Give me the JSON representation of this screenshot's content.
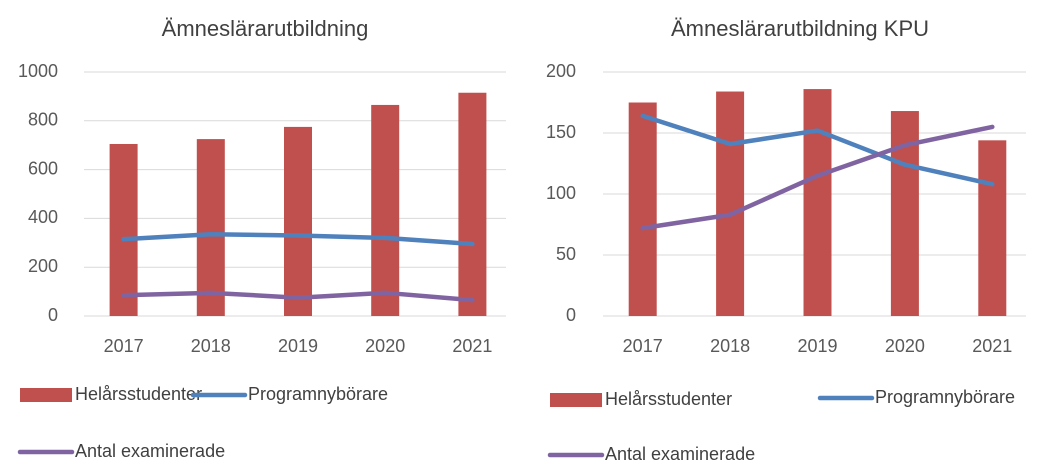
{
  "chart_data": [
    {
      "type": "combo",
      "title": "Ämneslärarutbildning",
      "categories": [
        "2017",
        "2018",
        "2019",
        "2020",
        "2021"
      ],
      "ylim": [
        0,
        1000
      ],
      "yticks": [
        0,
        200,
        400,
        600,
        800,
        1000
      ],
      "grid": true,
      "series": [
        {
          "name": "Helårsstudenter",
          "type": "bar",
          "color": "#c0504d",
          "values": [
            705,
            725,
            775,
            865,
            915
          ]
        },
        {
          "name": "Programnybörare",
          "type": "line",
          "color": "#4f81bd",
          "values": [
            315,
            335,
            330,
            320,
            295
          ]
        },
        {
          "name": "Antal examinerade",
          "type": "line",
          "color": "#8064a2",
          "values": [
            85,
            95,
            75,
            95,
            65
          ]
        }
      ]
    },
    {
      "type": "combo",
      "title": "Ämneslärarutbildning KPU",
      "categories": [
        "2017",
        "2018",
        "2019",
        "2020",
        "2021"
      ],
      "ylim": [
        0,
        200
      ],
      "yticks": [
        0,
        50,
        100,
        150,
        200
      ],
      "grid": true,
      "series": [
        {
          "name": "Helårsstudenter",
          "type": "bar",
          "color": "#c0504d",
          "values": [
            175,
            184,
            186,
            168,
            144
          ]
        },
        {
          "name": "Programnybörare",
          "type": "line",
          "color": "#4f81bd",
          "values": [
            164,
            141,
            152,
            124,
            108
          ]
        },
        {
          "name": "Antal examinerade",
          "type": "line",
          "color": "#8064a2",
          "values": [
            72,
            83,
            115,
            140,
            155
          ]
        }
      ]
    }
  ]
}
